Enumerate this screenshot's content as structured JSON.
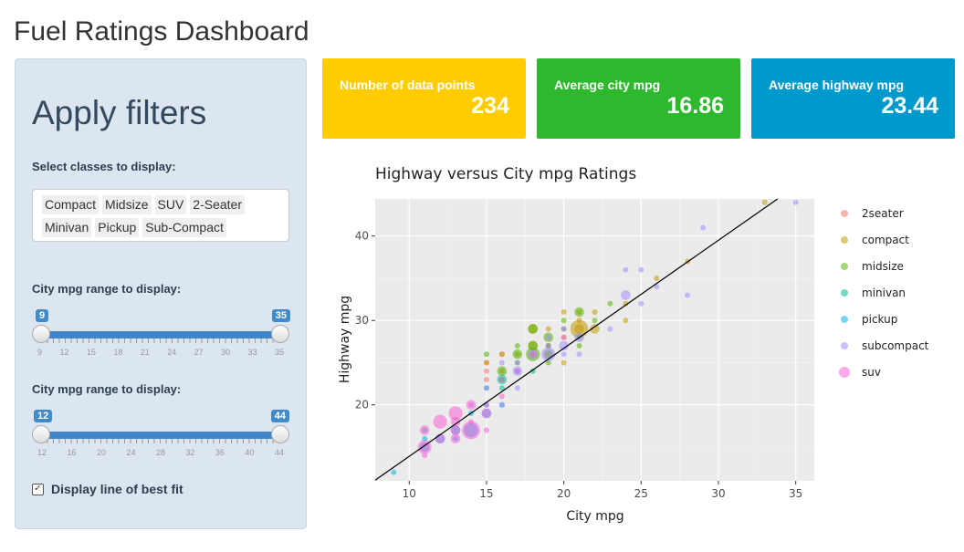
{
  "header": {
    "title": "Fuel Ratings Dashboard"
  },
  "sidebar": {
    "title": "Apply filters",
    "classes_label": "Select classes to display:",
    "classes": [
      "Compact",
      "Midsize",
      "SUV",
      "2-Seater",
      "Minivan",
      "Pickup",
      "Sub-Compact"
    ],
    "city_slider": {
      "label": "City mpg range to display:",
      "from": "9",
      "to": "35",
      "ticks": [
        "9",
        "12",
        "15",
        "18",
        "21",
        "24",
        "27",
        "30",
        "33",
        "35"
      ]
    },
    "hwy_slider": {
      "label": "City mpg range to display:",
      "from": "12",
      "to": "44",
      "ticks": [
        "12",
        "16",
        "20",
        "24",
        "28",
        "32",
        "36",
        "40",
        "44"
      ]
    },
    "best_fit": {
      "label": "Display line of best fit",
      "checked": true
    }
  },
  "kpis": [
    {
      "label": "Number of data points",
      "value": "234",
      "color": "#ffcc00"
    },
    {
      "label": "Average city mpg",
      "value": "16.86",
      "color": "#2eb82e"
    },
    {
      "label": "Average highway mpg",
      "value": "23.44",
      "color": "#0099cc"
    }
  ],
  "chart_data": {
    "type": "scatter",
    "title": "Highway versus City mpg Ratings",
    "xlabel": "City mpg",
    "ylabel": "Highway mpg",
    "xlim": [
      7.8,
      36.2
    ],
    "ylim": [
      11,
      44.4
    ],
    "xticks": [
      10,
      15,
      20,
      25,
      30,
      35
    ],
    "yticks": [
      20,
      30,
      40
    ],
    "grid": true,
    "legend_position": "right",
    "fit_line": {
      "slope": 1.28,
      "intercept": 1.1
    },
    "series": [
      {
        "name": "2seater",
        "color": "#f8766d",
        "points": [
          [
            15,
            23,
            1
          ],
          [
            16,
            26,
            1
          ],
          [
            15,
            25,
            1
          ],
          [
            16,
            24,
            1
          ],
          [
            15,
            24,
            1
          ]
        ]
      },
      {
        "name": "compact",
        "color": "#c49a00",
        "points": [
          [
            18,
            29,
            2
          ],
          [
            21,
            29,
            2
          ],
          [
            20,
            31,
            1
          ],
          [
            21,
            30,
            1
          ],
          [
            16,
            26,
            1
          ],
          [
            18,
            27,
            2
          ],
          [
            19,
            27,
            1
          ],
          [
            21,
            29,
            4
          ],
          [
            22,
            29,
            2
          ],
          [
            20,
            28,
            1
          ],
          [
            24,
            32,
            1
          ],
          [
            24,
            30,
            1
          ],
          [
            21,
            31,
            1
          ],
          [
            22,
            31,
            1
          ],
          [
            26,
            35,
            1
          ],
          [
            28,
            37,
            1
          ],
          [
            33,
            44,
            1
          ],
          [
            15,
            25,
            1
          ],
          [
            17,
            26,
            1
          ],
          [
            19,
            26,
            1
          ],
          [
            20,
            25,
            1
          ],
          [
            19,
            29,
            1
          ],
          [
            18,
            26,
            1
          ]
        ]
      },
      {
        "name": "midsize",
        "color": "#53b400",
        "points": [
          [
            18,
            26,
            3
          ],
          [
            19,
            28,
            2
          ],
          [
            21,
            31,
            2
          ],
          [
            18,
            29,
            2
          ],
          [
            19,
            26,
            2
          ],
          [
            17,
            26,
            2
          ],
          [
            19,
            27,
            1
          ],
          [
            21,
            27,
            1
          ],
          [
            20,
            29,
            1
          ],
          [
            16,
            24,
            2
          ],
          [
            23,
            32,
            1
          ],
          [
            17,
            25,
            1
          ],
          [
            18,
            27,
            2
          ],
          [
            19,
            25,
            1
          ],
          [
            16,
            23,
            1
          ],
          [
            20,
            30,
            1
          ],
          [
            15,
            26,
            1
          ],
          [
            17,
            27,
            1
          ],
          [
            22,
            30,
            1
          ],
          [
            21,
            28,
            1
          ]
        ]
      },
      {
        "name": "minivan",
        "color": "#00c094",
        "points": [
          [
            16,
            23,
            2
          ],
          [
            17,
            24,
            1
          ],
          [
            15,
            22,
            1
          ],
          [
            16,
            22,
            1
          ],
          [
            18,
            24,
            1
          ],
          [
            11,
            17,
            1
          ]
        ]
      },
      {
        "name": "pickup",
        "color": "#00b6eb",
        "points": [
          [
            15,
            19,
            2
          ],
          [
            14,
            17,
            3
          ],
          [
            13,
            17,
            2
          ],
          [
            12,
            16,
            2
          ],
          [
            9,
            12,
            1
          ],
          [
            11,
            15,
            2
          ],
          [
            15,
            20,
            1
          ],
          [
            14,
            19,
            1
          ],
          [
            13,
            16,
            1
          ],
          [
            16,
            20,
            1
          ],
          [
            11,
            16,
            1
          ]
        ]
      },
      {
        "name": "subcompact",
        "color": "#a58aff",
        "points": [
          [
            21,
            28,
            2
          ],
          [
            24,
            33,
            2
          ],
          [
            28,
            33,
            1
          ],
          [
            25,
            36,
            1
          ],
          [
            24,
            36,
            1
          ],
          [
            26,
            34,
            1
          ],
          [
            29,
            41,
            1
          ],
          [
            35,
            44,
            1
          ],
          [
            20,
            27,
            2
          ],
          [
            19,
            26,
            3
          ],
          [
            18,
            26,
            2
          ],
          [
            17,
            24,
            2
          ],
          [
            20,
            29,
            1
          ],
          [
            21,
            26,
            1
          ],
          [
            25,
            32,
            1
          ],
          [
            23,
            29,
            1
          ],
          [
            17,
            25,
            1
          ],
          [
            16,
            25,
            1
          ],
          [
            15,
            22,
            1
          ],
          [
            14,
            20,
            1
          ],
          [
            16,
            20,
            1
          ],
          [
            19,
            27,
            1
          ],
          [
            19,
            28,
            1
          ],
          [
            20,
            26,
            1
          ],
          [
            17,
            22,
            1
          ]
        ]
      },
      {
        "name": "suv",
        "color": "#fb61d7",
        "points": [
          [
            11,
            15,
            3
          ],
          [
            12,
            18,
            3
          ],
          [
            14,
            17,
            4
          ],
          [
            13,
            19,
            3
          ],
          [
            15,
            17,
            1
          ],
          [
            14,
            20,
            2
          ],
          [
            11,
            17,
            2
          ],
          [
            13,
            18,
            2
          ],
          [
            15,
            19,
            2
          ],
          [
            12,
            16,
            2
          ],
          [
            11,
            14,
            1
          ],
          [
            13,
            16,
            2
          ],
          [
            14,
            18,
            1
          ],
          [
            16,
            21,
            1
          ],
          [
            15,
            20,
            1
          ],
          [
            16,
            23,
            1
          ],
          [
            17,
            24,
            1
          ],
          [
            20,
            28,
            1
          ],
          [
            13,
            17,
            2
          ],
          [
            18,
            26,
            1
          ]
        ]
      }
    ]
  }
}
